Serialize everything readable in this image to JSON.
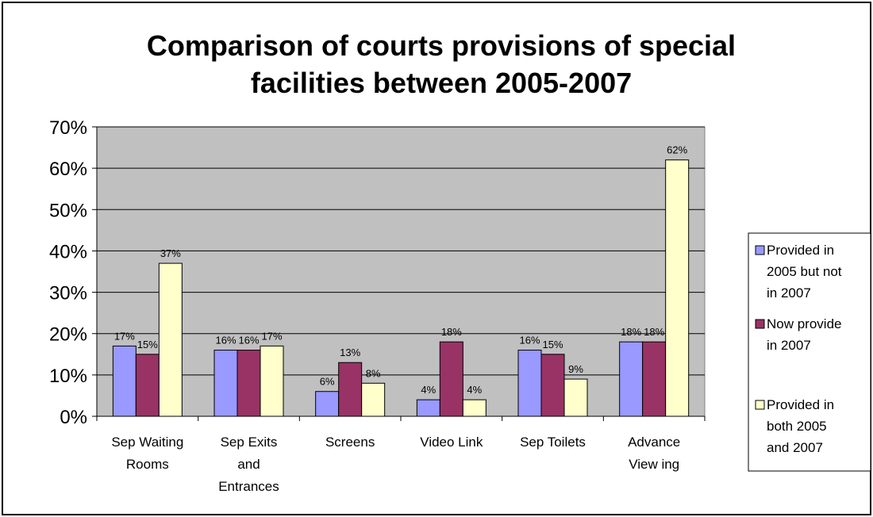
{
  "chart_data": {
    "type": "bar",
    "title": "Comparison of courts provisions of special facilities between 2005-2007",
    "title_lines": [
      "Comparison of courts provisions of special",
      "facilities between 2005-2007"
    ],
    "xlabel": "",
    "ylabel": "",
    "ylim": [
      0,
      70
    ],
    "y_ticks": [
      "0%",
      "10%",
      "20%",
      "30%",
      "40%",
      "50%",
      "60%",
      "70%"
    ],
    "grid": true,
    "legend_position": "right",
    "plot_background": "#c0c0c0",
    "categories": [
      [
        "Sep Waiting",
        "Rooms"
      ],
      [
        "Sep Exits",
        "and",
        "Entrances"
      ],
      [
        "Screens"
      ],
      [
        "Video Link"
      ],
      [
        "Sep Toilets"
      ],
      [
        "Advance",
        "View ing"
      ]
    ],
    "series": [
      {
        "name": "Provided in 2005 but not in 2007",
        "legend_lines": [
          "Provided in",
          "2005 but not",
          "in 2007"
        ],
        "color": "#9999ff",
        "values": [
          17,
          16,
          6,
          4,
          16,
          18
        ],
        "labels": [
          "17%",
          "16%",
          "6%",
          "4%",
          "16%",
          "18%"
        ]
      },
      {
        "name": "Now provide in 2007",
        "legend_lines": [
          "Now provide",
          "in 2007"
        ],
        "color": "#993366",
        "values": [
          15,
          16,
          13,
          18,
          15,
          18
        ],
        "labels": [
          "15%",
          "16%",
          "13%",
          "18%",
          "15%",
          "18%"
        ]
      },
      {
        "name": "Provided in both 2005 and 2007",
        "legend_lines": [
          "Provided in",
          "both 2005",
          "and 2007"
        ],
        "color": "#ffffcc",
        "values": [
          37,
          17,
          8,
          4,
          9,
          62
        ],
        "labels": [
          "37%",
          "17%",
          "8%",
          "4%",
          "9%",
          "62%"
        ]
      }
    ]
  }
}
